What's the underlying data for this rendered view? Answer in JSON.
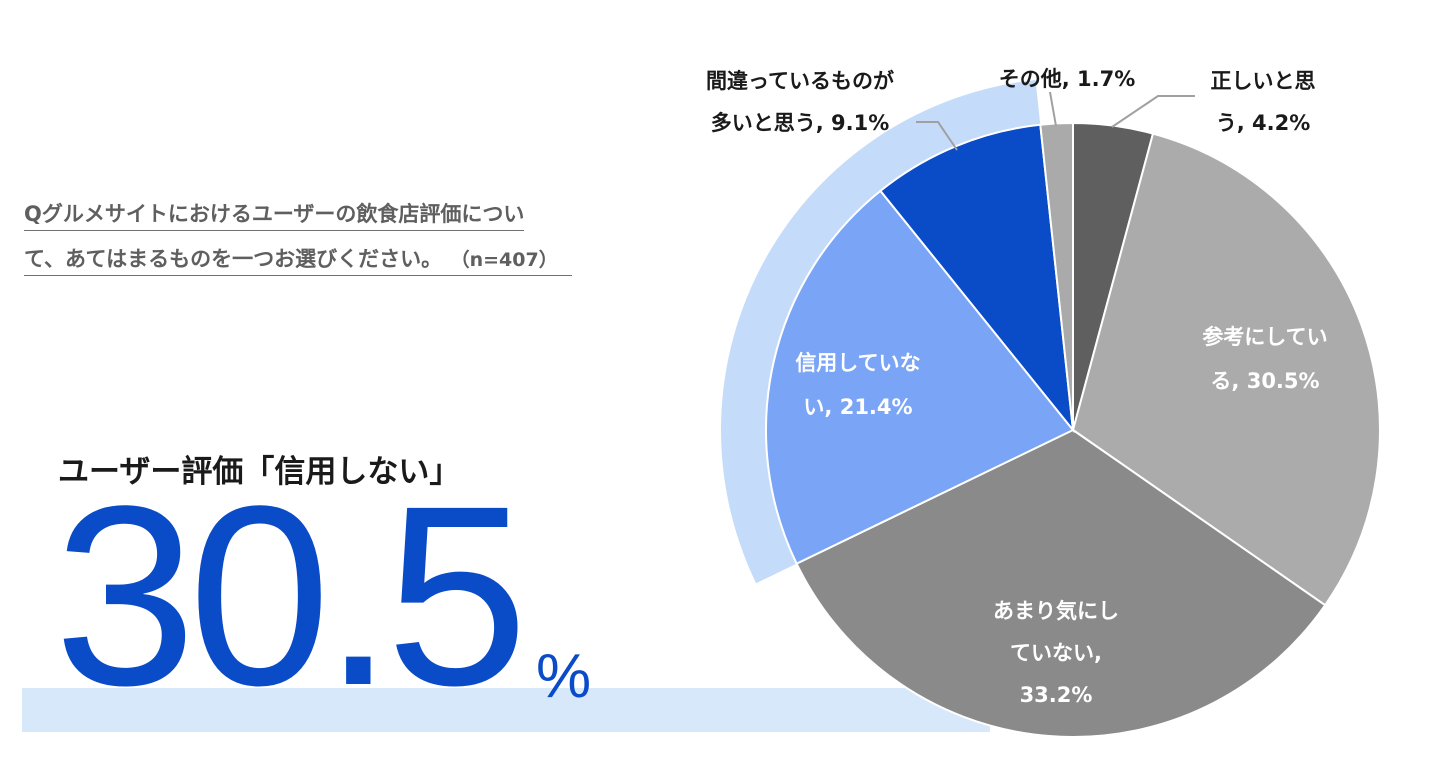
{
  "question": {
    "line1": "Qグルメサイトにおけるユーザーの飲食店評価につい",
    "line2": "て、あてはまるものを一つお選びください。",
    "n_label": "（n=407）"
  },
  "headline": {
    "title": "ユーザー評価「信用しない」",
    "value": "30.5",
    "unit": "%"
  },
  "colors": {
    "accent": "#0a4bc8",
    "highlight_band": "#d8e8fb",
    "highlight_arc": "#c4dcfa"
  },
  "chart_data": {
    "type": "pie",
    "start_angle": "12 o'clock",
    "direction": "clockwise",
    "slices": [
      {
        "name": "正しいと思う",
        "value": 4.2,
        "color": "#5f5f5f",
        "label_lines": [
          "正しいと思",
          "う, 4.2%"
        ]
      },
      {
        "name": "参考にしている",
        "value": 30.5,
        "color": "#ababab",
        "label_lines": [
          "参考にしてい",
          "る, 30.5%"
        ]
      },
      {
        "name": "あまり気にしていない",
        "value": 33.2,
        "color": "#8a8a8a",
        "label_lines": [
          "あまり気にし",
          "ていない,",
          "33.2%"
        ]
      },
      {
        "name": "信用していない",
        "value": 21.4,
        "color": "#7aa4f5",
        "label_lines": [
          "信用していな",
          "い, 21.4%"
        ]
      },
      {
        "name": "間違っているものが多いと思う",
        "value": 9.1,
        "color": "#0a4bc8",
        "label_lines": [
          "間違っているものが",
          "多いと思う, 9.1%"
        ]
      },
      {
        "name": "その他",
        "value": 1.7,
        "color": "#aaaaaa",
        "label_lines": [
          "その他, 1.7%"
        ]
      }
    ]
  }
}
